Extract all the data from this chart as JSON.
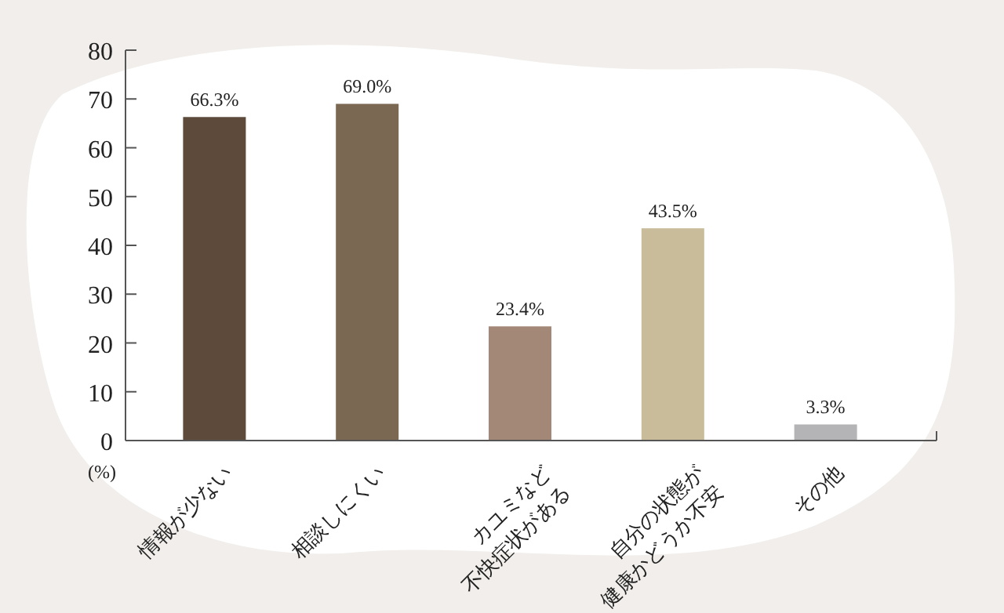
{
  "chart_data": {
    "type": "bar",
    "ylabel": "(%)",
    "categories": [
      "情報が少ない",
      "相談しにくい",
      "カユミなど\n不快症状がある",
      "自分の状態が\n健康かどうか不安",
      "その他"
    ],
    "values": [
      66.3,
      69.0,
      23.4,
      43.5,
      3.3
    ],
    "colors": [
      "#5e4a3b",
      "#7a6853",
      "#a38877",
      "#c9bc9a",
      "#b4b4b6"
    ],
    "value_labels": [
      "66.3%",
      "69.0%",
      "23.4%",
      "43.5%",
      "3.3%"
    ],
    "ylim": [
      0,
      80
    ],
    "yticks": [
      0,
      10,
      20,
      30,
      40,
      50,
      60,
      70,
      80
    ]
  }
}
